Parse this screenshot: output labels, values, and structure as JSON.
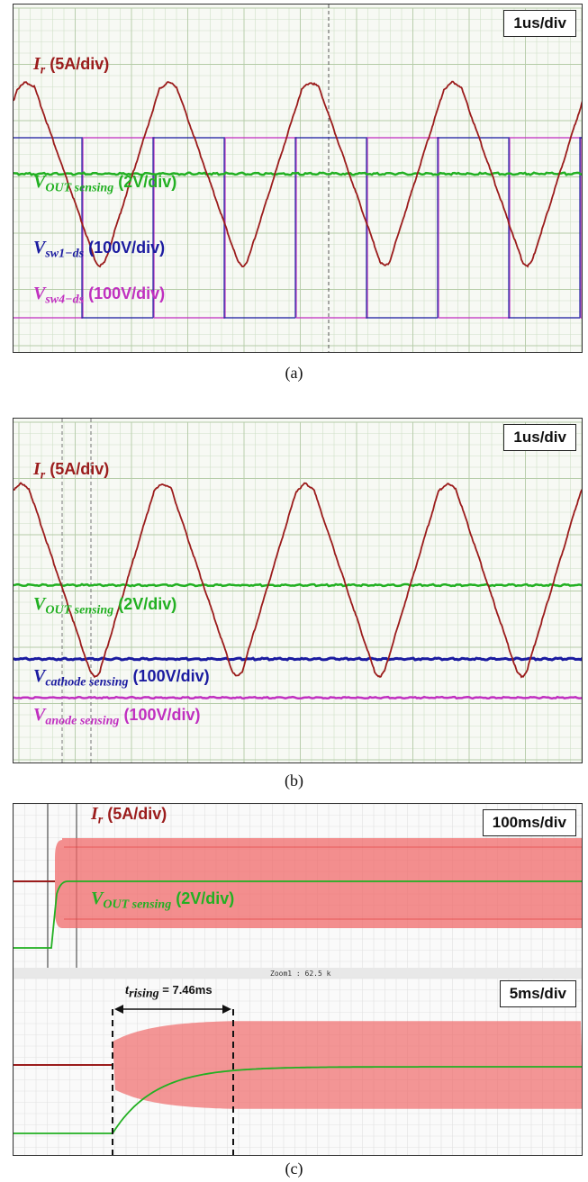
{
  "captions": {
    "a": "(a)",
    "b": "(b)",
    "c": "(c)"
  },
  "panel_a": {
    "scale": "1us/div",
    "labels": {
      "ir": {
        "sym": "I",
        "sub": "r",
        "unit": "(5A/div)",
        "color": "#9b1c1c"
      },
      "vout": {
        "sym": "V",
        "sub": "OUT sensing",
        "unit": "(2V/div)",
        "color": "#22b022"
      },
      "vsw1": {
        "sym": "V",
        "sub": "sw1−ds",
        "unit": "(100V/div)",
        "color": "#1b1ba0"
      },
      "vsw4": {
        "sym": "V",
        "sub": "sw4−ds",
        "unit": "(100V/div)",
        "color": "#c030c0"
      }
    }
  },
  "panel_b": {
    "scale": "1us/div",
    "labels": {
      "ir": {
        "sym": "I",
        "sub": "r",
        "unit": "(5A/div)",
        "color": "#9b1c1c"
      },
      "vout": {
        "sym": "V",
        "sub": "OUT sensing",
        "unit": "(2V/div)",
        "color": "#22b022"
      },
      "vcath": {
        "sym": "V",
        "sub": "cathode sensing",
        "unit": "(100V/div)",
        "color": "#1b1ba0"
      },
      "vanode": {
        "sym": "V",
        "sub": "anode sensing",
        "unit": "(100V/div)",
        "color": "#c030c0"
      }
    }
  },
  "panel_c": {
    "scale_top": "100ms/div",
    "scale_bottom": "5ms/div",
    "zoom_text": "Zoom1 : 62.5 k",
    "annotation": {
      "sym": "t",
      "sub": "rising",
      "value": "= 7.46ms"
    },
    "labels": {
      "ir": {
        "sym": "I",
        "sub": "r",
        "unit": "(5A/div)",
        "color": "#9b1c1c"
      },
      "vout": {
        "sym": "V",
        "sub": "OUT sensing",
        "unit": "(2V/div)",
        "color": "#22b022"
      }
    }
  },
  "chart_data": [
    {
      "type": "line",
      "panel": "a",
      "time_per_div": "1us/div",
      "series": [
        {
          "name": "I_r",
          "scale": "5A/div",
          "waveform": "resonant current, period ~3.2 div"
        },
        {
          "name": "V_OUT sensing",
          "scale": "2V/div",
          "waveform": "flat DC"
        },
        {
          "name": "V_sw1-ds",
          "scale": "100V/div",
          "waveform": "square wave"
        },
        {
          "name": "V_sw4-ds",
          "scale": "100V/div",
          "waveform": "square wave, complementary"
        }
      ]
    },
    {
      "type": "line",
      "panel": "b",
      "time_per_div": "1us/div",
      "series": [
        {
          "name": "I_r",
          "scale": "5A/div"
        },
        {
          "name": "V_OUT sensing",
          "scale": "2V/div"
        },
        {
          "name": "V_cathode sensing",
          "scale": "100V/div"
        },
        {
          "name": "V_anode sensing",
          "scale": "100V/div"
        }
      ]
    },
    {
      "type": "line",
      "panel": "c",
      "time_per_div": [
        "100ms/div",
        "5ms/div"
      ],
      "series": [
        {
          "name": "I_r",
          "scale": "5A/div"
        },
        {
          "name": "V_OUT sensing",
          "scale": "2V/div"
        }
      ],
      "annotations": [
        {
          "text": "t_rising = 7.46ms",
          "value_ms": 7.46
        }
      ]
    }
  ]
}
